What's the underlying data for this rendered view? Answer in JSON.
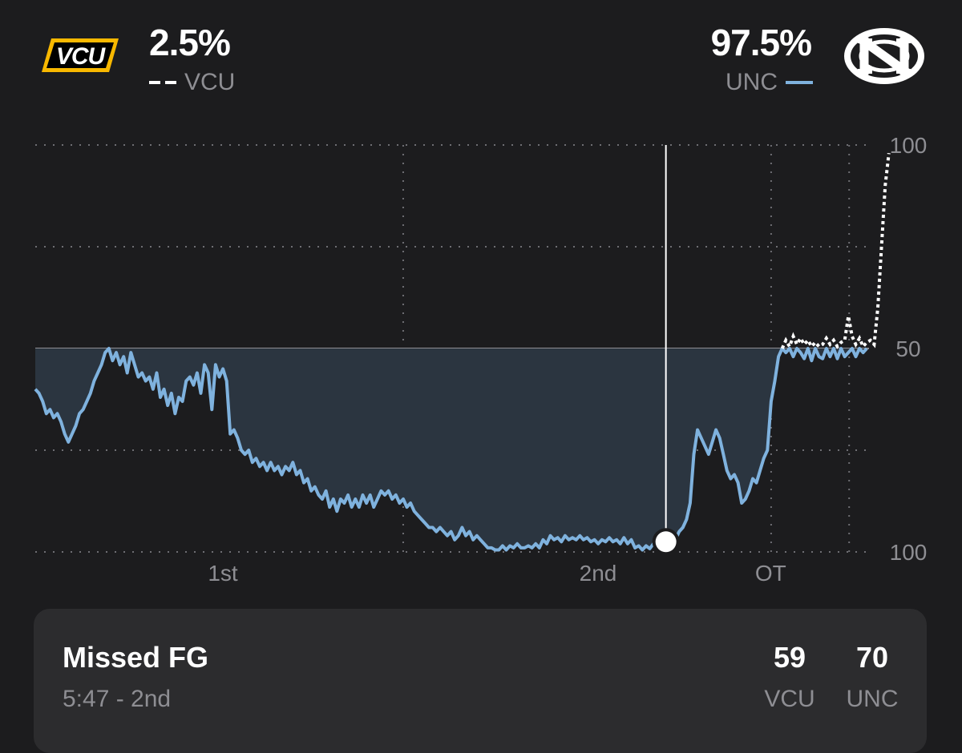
{
  "header": {
    "away": {
      "logo_text": "VCU",
      "pct": "2.5%",
      "label": "VCU",
      "color": "#ffffff",
      "line_style": "dashed"
    },
    "home": {
      "logo_text": "NC",
      "pct": "97.5%",
      "label": "UNC",
      "color": "#7fb2de",
      "line_style": "solid"
    }
  },
  "chart_data": {
    "type": "area",
    "ylim": [
      0,
      100
    ],
    "y_ticks": [
      "100",
      "50",
      "100"
    ],
    "x_ticks": [
      {
        "label": "1st",
        "at": 0.25
      },
      {
        "label": "2nd",
        "at": 0.75
      },
      {
        "label": "OT",
        "at": 0.98
      }
    ],
    "period_bounds": [
      0,
      0.5,
      1.0,
      1.106
    ],
    "x_max": 1.133,
    "grid": true,
    "marker": {
      "x": 0.857,
      "y": 2.5
    },
    "series": [
      {
        "name": "UNC",
        "color": "#7fb2de",
        "style": "solid",
        "points": [
          [
            0.0,
            40.0
          ],
          [
            0.005,
            39.0
          ],
          [
            0.01,
            37.0
          ],
          [
            0.015,
            34.0
          ],
          [
            0.02,
            35.0
          ],
          [
            0.025,
            33.0
          ],
          [
            0.03,
            34.0
          ],
          [
            0.035,
            32.0
          ],
          [
            0.04,
            29.0
          ],
          [
            0.045,
            27.0
          ],
          [
            0.05,
            29.0
          ],
          [
            0.055,
            31.0
          ],
          [
            0.06,
            34.0
          ],
          [
            0.065,
            35.0
          ],
          [
            0.07,
            37.0
          ],
          [
            0.075,
            39.0
          ],
          [
            0.08,
            42.0
          ],
          [
            0.085,
            44.0
          ],
          [
            0.09,
            46.0
          ],
          [
            0.095,
            49.0
          ],
          [
            0.1,
            50.0
          ],
          [
            0.105,
            47.0
          ],
          [
            0.11,
            49.0
          ],
          [
            0.115,
            46.0
          ],
          [
            0.12,
            48.0
          ],
          [
            0.125,
            44.0
          ],
          [
            0.13,
            49.0
          ],
          [
            0.135,
            46.0
          ],
          [
            0.14,
            43.0
          ],
          [
            0.145,
            44.0
          ],
          [
            0.15,
            42.0
          ],
          [
            0.155,
            43.0
          ],
          [
            0.16,
            40.0
          ],
          [
            0.165,
            44.0
          ],
          [
            0.17,
            38.0
          ],
          [
            0.175,
            40.0
          ],
          [
            0.18,
            36.0
          ],
          [
            0.185,
            39.0
          ],
          [
            0.19,
            34.0
          ],
          [
            0.195,
            38.0
          ],
          [
            0.2,
            37.0
          ],
          [
            0.205,
            42.0
          ],
          [
            0.21,
            43.0
          ],
          [
            0.215,
            41.0
          ],
          [
            0.22,
            44.0
          ],
          [
            0.225,
            39.0
          ],
          [
            0.23,
            46.0
          ],
          [
            0.235,
            44.0
          ],
          [
            0.24,
            35.0
          ],
          [
            0.245,
            46.0
          ],
          [
            0.25,
            43.0
          ],
          [
            0.255,
            45.0
          ],
          [
            0.26,
            42.0
          ],
          [
            0.265,
            29.0
          ],
          [
            0.27,
            30.0
          ],
          [
            0.275,
            28.0
          ],
          [
            0.28,
            25.0
          ],
          [
            0.285,
            24.0
          ],
          [
            0.29,
            25.0
          ],
          [
            0.295,
            22.0
          ],
          [
            0.3,
            23.0
          ],
          [
            0.305,
            21.0
          ],
          [
            0.31,
            22.0
          ],
          [
            0.315,
            20.0
          ],
          [
            0.32,
            22.0
          ],
          [
            0.325,
            20.0
          ],
          [
            0.33,
            21.0
          ],
          [
            0.335,
            19.0
          ],
          [
            0.34,
            21.0
          ],
          [
            0.345,
            20.0
          ],
          [
            0.35,
            22.0
          ],
          [
            0.355,
            19.0
          ],
          [
            0.36,
            20.0
          ],
          [
            0.365,
            17.0
          ],
          [
            0.37,
            18.0
          ],
          [
            0.375,
            15.0
          ],
          [
            0.38,
            16.0
          ],
          [
            0.385,
            14.0
          ],
          [
            0.39,
            13.0
          ],
          [
            0.395,
            15.0
          ],
          [
            0.4,
            11.0
          ],
          [
            0.405,
            13.0
          ],
          [
            0.41,
            10.0
          ],
          [
            0.415,
            13.0
          ],
          [
            0.42,
            12.0
          ],
          [
            0.425,
            14.0
          ],
          [
            0.43,
            11.0
          ],
          [
            0.435,
            13.0
          ],
          [
            0.44,
            11.0
          ],
          [
            0.445,
            14.0
          ],
          [
            0.45,
            12.0
          ],
          [
            0.455,
            14.0
          ],
          [
            0.46,
            11.0
          ],
          [
            0.465,
            13.0
          ],
          [
            0.47,
            15.0
          ],
          [
            0.475,
            14.0
          ],
          [
            0.48,
            15.0
          ],
          [
            0.485,
            13.0
          ],
          [
            0.49,
            14.0
          ],
          [
            0.495,
            12.0
          ],
          [
            0.5,
            13.0
          ],
          [
            0.505,
            11.0
          ],
          [
            0.51,
            12.0
          ],
          [
            0.515,
            10.0
          ],
          [
            0.52,
            9.0
          ],
          [
            0.525,
            8.0
          ],
          [
            0.53,
            7.0
          ],
          [
            0.535,
            6.0
          ],
          [
            0.54,
            6.0
          ],
          [
            0.545,
            5.0
          ],
          [
            0.55,
            6.0
          ],
          [
            0.555,
            5.0
          ],
          [
            0.56,
            4.0
          ],
          [
            0.565,
            5.0
          ],
          [
            0.57,
            3.0
          ],
          [
            0.575,
            4.0
          ],
          [
            0.58,
            6.0
          ],
          [
            0.585,
            4.0
          ],
          [
            0.59,
            5.0
          ],
          [
            0.595,
            3.0
          ],
          [
            0.6,
            4.0
          ],
          [
            0.605,
            3.0
          ],
          [
            0.61,
            2.0
          ],
          [
            0.615,
            1.0
          ],
          [
            0.62,
            1.0
          ],
          [
            0.625,
            0.5
          ],
          [
            0.63,
            0.5
          ],
          [
            0.635,
            1.5
          ],
          [
            0.64,
            0.5
          ],
          [
            0.645,
            1.5
          ],
          [
            0.65,
            1.0
          ],
          [
            0.655,
            2.0
          ],
          [
            0.66,
            1.0
          ],
          [
            0.665,
            1.0
          ],
          [
            0.67,
            1.5
          ],
          [
            0.675,
            1.0
          ],
          [
            0.68,
            2.0
          ],
          [
            0.685,
            1.0
          ],
          [
            0.69,
            3.0
          ],
          [
            0.695,
            2.0
          ],
          [
            0.7,
            4.0
          ],
          [
            0.705,
            3.0
          ],
          [
            0.71,
            3.5
          ],
          [
            0.715,
            2.5
          ],
          [
            0.72,
            4.0
          ],
          [
            0.725,
            3.0
          ],
          [
            0.73,
            3.5
          ],
          [
            0.735,
            3.0
          ],
          [
            0.74,
            4.0
          ],
          [
            0.745,
            3.0
          ],
          [
            0.75,
            3.5
          ],
          [
            0.755,
            2.5
          ],
          [
            0.76,
            3.0
          ],
          [
            0.765,
            2.0
          ],
          [
            0.77,
            3.0
          ],
          [
            0.775,
            2.5
          ],
          [
            0.78,
            3.5
          ],
          [
            0.785,
            2.5
          ],
          [
            0.79,
            3.0
          ],
          [
            0.795,
            2.0
          ],
          [
            0.8,
            3.5
          ],
          [
            0.805,
            2.0
          ],
          [
            0.81,
            3.0
          ],
          [
            0.815,
            1.0
          ],
          [
            0.82,
            1.5
          ],
          [
            0.825,
            0.5
          ],
          [
            0.83,
            1.5
          ],
          [
            0.835,
            0.8
          ],
          [
            0.84,
            2.0
          ],
          [
            0.845,
            1.0
          ],
          [
            0.85,
            2.5
          ],
          [
            0.857,
            2.5
          ],
          [
            0.865,
            2.0
          ],
          [
            0.87,
            3.0
          ],
          [
            0.875,
            5.0
          ],
          [
            0.88,
            6.0
          ],
          [
            0.885,
            8.0
          ],
          [
            0.89,
            12.0
          ],
          [
            0.895,
            24.0
          ],
          [
            0.9,
            30.0
          ],
          [
            0.905,
            28.0
          ],
          [
            0.91,
            26.0
          ],
          [
            0.915,
            24.0
          ],
          [
            0.92,
            27.0
          ],
          [
            0.925,
            30.0
          ],
          [
            0.93,
            28.0
          ],
          [
            0.935,
            24.0
          ],
          [
            0.94,
            20.0
          ],
          [
            0.945,
            18.0
          ],
          [
            0.95,
            19.0
          ],
          [
            0.955,
            17.0
          ],
          [
            0.96,
            12.0
          ],
          [
            0.965,
            13.0
          ],
          [
            0.97,
            15.0
          ],
          [
            0.975,
            18.0
          ],
          [
            0.98,
            17.0
          ],
          [
            0.985,
            20.0
          ],
          [
            0.99,
            23.0
          ],
          [
            0.995,
            25.0
          ],
          [
            1.0,
            37.0
          ],
          [
            1.005,
            42.0
          ],
          [
            1.01,
            48.0
          ],
          [
            1.015,
            50.0
          ],
          [
            1.02,
            49.0
          ],
          [
            1.025,
            50.0
          ],
          [
            1.03,
            48.0
          ],
          [
            1.035,
            50.0
          ],
          [
            1.04,
            49.0
          ],
          [
            1.045,
            47.5
          ],
          [
            1.05,
            50.0
          ],
          [
            1.055,
            47.0
          ],
          [
            1.06,
            50.0
          ],
          [
            1.065,
            48.0
          ],
          [
            1.07,
            47.5
          ],
          [
            1.075,
            50.0
          ],
          [
            1.08,
            48.0
          ],
          [
            1.085,
            50.0
          ],
          [
            1.09,
            47.5
          ],
          [
            1.095,
            50.0
          ],
          [
            1.1,
            48.0
          ],
          [
            1.105,
            49.0
          ],
          [
            1.11,
            50.0
          ],
          [
            1.115,
            48.0
          ],
          [
            1.12,
            50.0
          ],
          [
            1.125,
            49.0
          ],
          [
            1.13,
            50.0
          ]
        ]
      },
      {
        "name": "VCU",
        "color": "#ffffff",
        "style": "dashed",
        "points": [
          [
            1.015,
            50.0
          ],
          [
            1.02,
            52.0
          ],
          [
            1.025,
            50.5
          ],
          [
            1.03,
            53.0
          ],
          [
            1.035,
            51.0
          ],
          [
            1.04,
            52.5
          ],
          [
            1.045,
            51.0
          ],
          [
            1.05,
            52.0
          ],
          [
            1.055,
            50.5
          ],
          [
            1.06,
            51.5
          ],
          [
            1.065,
            50.5
          ],
          [
            1.07,
            51.0
          ],
          [
            1.075,
            52.5
          ],
          [
            1.08,
            51.0
          ],
          [
            1.085,
            52.0
          ],
          [
            1.09,
            50.5
          ],
          [
            1.095,
            51.5
          ],
          [
            1.1,
            52.0
          ],
          [
            1.105,
            58.0
          ],
          [
            1.11,
            53.0
          ],
          [
            1.115,
            51.0
          ],
          [
            1.12,
            52.5
          ],
          [
            1.125,
            50.5
          ],
          [
            1.13,
            51.5
          ],
          [
            1.135,
            52.0
          ],
          [
            1.14,
            51.0
          ],
          [
            1.145,
            60.0
          ],
          [
            1.15,
            75.0
          ],
          [
            1.155,
            90.0
          ],
          [
            1.16,
            98.0
          ]
        ]
      }
    ]
  },
  "play": {
    "title": "Missed FG",
    "clock": "5:47 - 2nd",
    "scores": [
      {
        "team": "VCU",
        "score": "59"
      },
      {
        "team": "UNC",
        "score": "70"
      }
    ]
  }
}
